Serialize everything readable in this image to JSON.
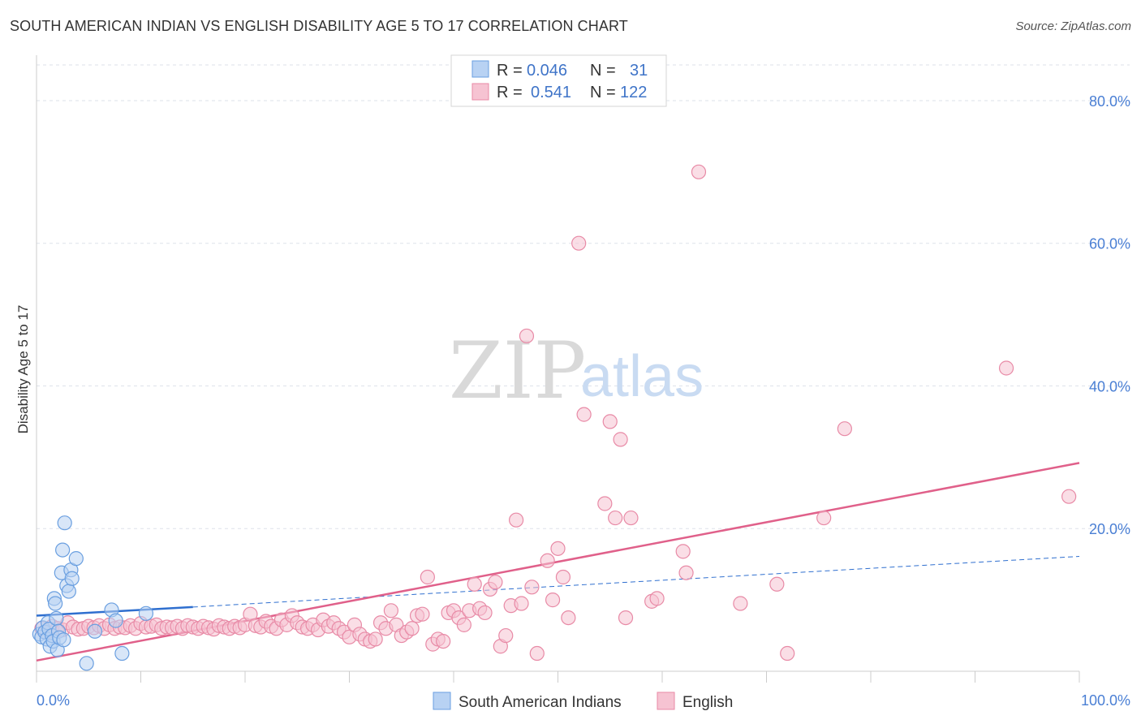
{
  "title": "SOUTH AMERICAN INDIAN VS ENGLISH DISABILITY AGE 5 TO 17 CORRELATION CHART",
  "source": "Source: ZipAtlas.com",
  "watermark": {
    "zip": "ZIP",
    "atlas": "atlas"
  },
  "colors": {
    "blue": "#6a9fe0",
    "blue_fill": "#b8d2f3",
    "blue_line": "#2f6fcf",
    "pink": "#e88aa6",
    "pink_fill": "#f6c3d2",
    "pink_line": "#e0608a",
    "axis_label": "#4a7fd4",
    "grid": "#dde2ea"
  },
  "legend": {
    "rows": [
      {
        "r_label": "R =",
        "r_value": "0.046",
        "n_label": "N =",
        "n_value": "31",
        "color": "blue"
      },
      {
        "r_label": "R =",
        "r_value": "0.541",
        "n_label": "N =",
        "n_value": "122",
        "color": "pink"
      }
    ]
  },
  "chart_data": {
    "type": "scatter",
    "title": "SOUTH AMERICAN INDIAN VS ENGLISH DISABILITY AGE 5 TO 17 CORRELATION CHART",
    "xlabel": "",
    "ylabel": "Disability Age 5 to 17",
    "xlim": [
      0,
      100
    ],
    "ylim": [
      0,
      85
    ],
    "x_tick_labels": [
      "0.0%",
      "100.0%"
    ],
    "y_tick_labels": [
      "20.0%",
      "40.0%",
      "60.0%",
      "80.0%"
    ],
    "y_ticks": [
      20,
      40,
      60,
      80
    ],
    "grid": true,
    "legend_position": "bottom",
    "series": [
      {
        "name": "South American Indians",
        "color": "blue",
        "points": [
          [
            0.3,
            5.2
          ],
          [
            0.5,
            4.8
          ],
          [
            0.6,
            6.1
          ],
          [
            0.8,
            5.5
          ],
          [
            1.0,
            4.5
          ],
          [
            1.1,
            6.8
          ],
          [
            1.2,
            5.9
          ],
          [
            1.3,
            3.5
          ],
          [
            1.5,
            5.0
          ],
          [
            1.6,
            4.2
          ],
          [
            1.7,
            10.2
          ],
          [
            1.8,
            9.5
          ],
          [
            1.9,
            7.4
          ],
          [
            2.0,
            3.0
          ],
          [
            2.1,
            5.6
          ],
          [
            2.2,
            4.7
          ],
          [
            2.4,
            13.8
          ],
          [
            2.5,
            17.0
          ],
          [
            2.6,
            4.4
          ],
          [
            2.7,
            20.8
          ],
          [
            2.9,
            12.0
          ],
          [
            3.1,
            11.2
          ],
          [
            3.3,
            14.2
          ],
          [
            3.4,
            13.0
          ],
          [
            3.8,
            15.8
          ],
          [
            4.8,
            1.1
          ],
          [
            5.6,
            5.6
          ],
          [
            7.2,
            8.6
          ],
          [
            7.6,
            7.1
          ],
          [
            8.2,
            2.5
          ],
          [
            10.5,
            8.1
          ]
        ],
        "trendline": {
          "x": [
            0,
            15
          ],
          "y": [
            7.8,
            9.0
          ],
          "dashed_extension": {
            "x": [
              15,
              100
            ],
            "y": [
              9.0,
              16.1
            ]
          }
        }
      },
      {
        "name": "English",
        "color": "pink",
        "points": [
          [
            0.5,
            6.0
          ],
          [
            1.0,
            5.5
          ],
          [
            1.5,
            6.3
          ],
          [
            2.0,
            6.0
          ],
          [
            2.5,
            5.8
          ],
          [
            3.0,
            6.8
          ],
          [
            3.5,
            6.2
          ],
          [
            4.0,
            5.9
          ],
          [
            4.5,
            6.0
          ],
          [
            5.0,
            6.3
          ],
          [
            5.5,
            6.1
          ],
          [
            6.0,
            6.4
          ],
          [
            6.5,
            6.0
          ],
          [
            7.0,
            6.5
          ],
          [
            7.5,
            6.0
          ],
          [
            8.0,
            6.2
          ],
          [
            8.5,
            6.1
          ],
          [
            9.0,
            6.4
          ],
          [
            9.5,
            6.0
          ],
          [
            10.0,
            6.7
          ],
          [
            10.5,
            6.2
          ],
          [
            11.0,
            6.3
          ],
          [
            11.5,
            6.5
          ],
          [
            12.0,
            6.0
          ],
          [
            12.5,
            6.2
          ],
          [
            13.0,
            6.1
          ],
          [
            13.5,
            6.3
          ],
          [
            14.0,
            6.0
          ],
          [
            14.5,
            6.4
          ],
          [
            15.0,
            6.2
          ],
          [
            15.5,
            6.0
          ],
          [
            16.0,
            6.3
          ],
          [
            16.5,
            6.1
          ],
          [
            17.0,
            5.9
          ],
          [
            17.5,
            6.4
          ],
          [
            18.0,
            6.2
          ],
          [
            18.5,
            6.0
          ],
          [
            19.0,
            6.3
          ],
          [
            19.5,
            6.1
          ],
          [
            20.0,
            6.5
          ],
          [
            20.5,
            8.0
          ],
          [
            21.0,
            6.4
          ],
          [
            21.5,
            6.2
          ],
          [
            22.0,
            7.0
          ],
          [
            22.5,
            6.3
          ],
          [
            23.0,
            6.0
          ],
          [
            23.5,
            7.2
          ],
          [
            24.0,
            6.5
          ],
          [
            24.5,
            7.8
          ],
          [
            25.0,
            6.8
          ],
          [
            25.5,
            6.2
          ],
          [
            26.0,
            6.0
          ],
          [
            26.5,
            6.5
          ],
          [
            27.0,
            5.8
          ],
          [
            27.5,
            7.2
          ],
          [
            28.0,
            6.3
          ],
          [
            28.5,
            6.8
          ],
          [
            29.0,
            6.0
          ],
          [
            29.5,
            5.5
          ],
          [
            30.0,
            4.8
          ],
          [
            30.5,
            6.5
          ],
          [
            31.0,
            5.2
          ],
          [
            31.5,
            4.5
          ],
          [
            32.0,
            4.2
          ],
          [
            32.5,
            4.5
          ],
          [
            33.0,
            6.8
          ],
          [
            33.5,
            6.0
          ],
          [
            34.0,
            8.5
          ],
          [
            34.5,
            6.5
          ],
          [
            35.0,
            5.0
          ],
          [
            35.5,
            5.5
          ],
          [
            36.0,
            6.0
          ],
          [
            36.5,
            7.8
          ],
          [
            37.0,
            8.0
          ],
          [
            37.5,
            13.2
          ],
          [
            38.0,
            3.8
          ],
          [
            38.5,
            4.5
          ],
          [
            39.0,
            4.2
          ],
          [
            39.5,
            8.2
          ],
          [
            40.0,
            8.5
          ],
          [
            40.5,
            7.5
          ],
          [
            41.0,
            6.5
          ],
          [
            41.5,
            8.5
          ],
          [
            42.0,
            12.2
          ],
          [
            42.5,
            8.8
          ],
          [
            43.0,
            8.2
          ],
          [
            43.5,
            11.5
          ],
          [
            44.0,
            12.5
          ],
          [
            44.5,
            3.5
          ],
          [
            45.0,
            5.0
          ],
          [
            45.5,
            9.2
          ],
          [
            46.0,
            21.2
          ],
          [
            46.5,
            9.5
          ],
          [
            47.0,
            47.0
          ],
          [
            47.5,
            11.8
          ],
          [
            48.0,
            2.5
          ],
          [
            49.0,
            15.5
          ],
          [
            49.5,
            10.0
          ],
          [
            50.0,
            17.2
          ],
          [
            50.5,
            13.2
          ],
          [
            51.0,
            7.5
          ],
          [
            52.0,
            60.0
          ],
          [
            52.5,
            36.0
          ],
          [
            54.5,
            23.5
          ],
          [
            55.0,
            35.0
          ],
          [
            55.5,
            21.5
          ],
          [
            56.0,
            32.5
          ],
          [
            56.5,
            7.5
          ],
          [
            57.0,
            21.5
          ],
          [
            59.0,
            9.8
          ],
          [
            59.5,
            10.2
          ],
          [
            62.0,
            16.8
          ],
          [
            62.3,
            13.8
          ],
          [
            63.5,
            70.0
          ],
          [
            67.5,
            9.5
          ],
          [
            71.0,
            12.2
          ],
          [
            72.0,
            2.5
          ],
          [
            75.5,
            21.5
          ],
          [
            77.5,
            34.0
          ],
          [
            93.0,
            42.5
          ],
          [
            99.0,
            24.5
          ]
        ],
        "trendline": {
          "x": [
            0,
            100
          ],
          "y": [
            1.5,
            29.2
          ]
        }
      }
    ]
  }
}
